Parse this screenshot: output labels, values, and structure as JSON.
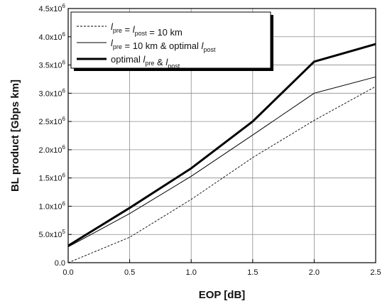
{
  "chart_data": {
    "type": "line",
    "xlabel": "EOP [dB]",
    "ylabel": "BL product [Gbps km]",
    "xlim": [
      0,
      2.5
    ],
    "ylim": [
      0,
      4500000
    ],
    "x_ticks": [
      "0.0",
      "0.5",
      "1.0",
      "1.5",
      "2.0",
      "2.5"
    ],
    "y_ticks": [
      {
        "base": "0.0",
        "exp": ""
      },
      {
        "base": "5.0x10",
        "exp": "5"
      },
      {
        "base": "1.0x10",
        "exp": "6"
      },
      {
        "base": "1.5x10",
        "exp": "6"
      },
      {
        "base": "2.0x10",
        "exp": "6"
      },
      {
        "base": "2.5x10",
        "exp": "6"
      },
      {
        "base": "3.0x10",
        "exp": "6"
      },
      {
        "base": "3.5x10",
        "exp": "6"
      },
      {
        "base": "4.0x10",
        "exp": "6"
      },
      {
        "base": "4.5x10",
        "exp": "6"
      }
    ],
    "grid": true,
    "legend_position": "top-left",
    "series": [
      {
        "legend": [
          {
            "t": "l",
            "i": true
          },
          {
            "t": "pre",
            "sub": true
          },
          {
            "t": " = "
          },
          {
            "t": "l",
            "i": true
          },
          {
            "t": "post",
            "sub": true
          },
          {
            "t": " = 10 km"
          }
        ],
        "style": "dashed-thin",
        "x": [
          0,
          0.5,
          1.0,
          1.5,
          2.0,
          2.5
        ],
        "y": [
          0,
          450000,
          1120000,
          1860000,
          2520000,
          3120000
        ]
      },
      {
        "legend": [
          {
            "t": "l",
            "i": true
          },
          {
            "t": "pre",
            "sub": true
          },
          {
            "t": " = 10 km & optimal "
          },
          {
            "t": "l",
            "i": true
          },
          {
            "t": "post",
            "sub": true
          }
        ],
        "style": "solid-thin",
        "x": [
          0,
          0.5,
          1.0,
          1.5,
          2.0,
          2.5
        ],
        "y": [
          280000,
          870000,
          1530000,
          2260000,
          3000000,
          3290000
        ]
      },
      {
        "legend": [
          {
            "t": "optimal "
          },
          {
            "t": "l",
            "i": true
          },
          {
            "t": "pre",
            "sub": true
          },
          {
            "t": " & "
          },
          {
            "t": "l",
            "i": true
          },
          {
            "t": "post",
            "sub": true
          }
        ],
        "style": "solid-thick",
        "x": [
          0,
          0.5,
          1.0,
          1.5,
          2.0,
          2.5
        ],
        "y": [
          300000,
          970000,
          1670000,
          2500000,
          3560000,
          3870000
        ]
      }
    ]
  }
}
